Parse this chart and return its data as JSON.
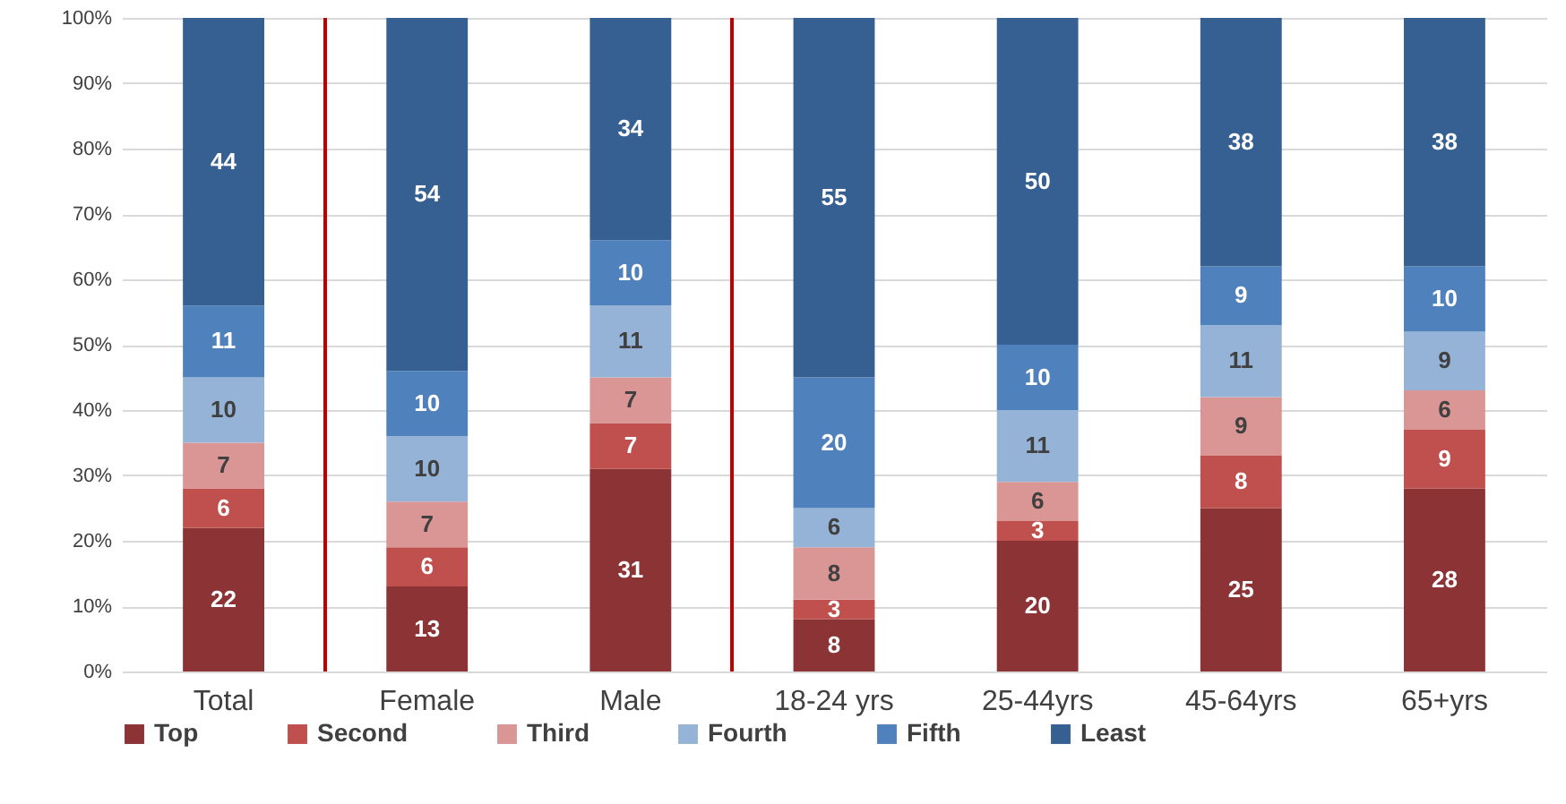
{
  "chart_data": {
    "type": "bar",
    "stacked": true,
    "data_labels": true,
    "grid": "y",
    "legend": "bottom",
    "categories": [
      "Total",
      "Female",
      "Male",
      "18-24 yrs",
      "25-44yrs",
      "45-64yrs",
      "65+yrs"
    ],
    "series": [
      {
        "name": "Top",
        "color": "#8c3336",
        "values": [
          22,
          13,
          31,
          8,
          20,
          25,
          28
        ]
      },
      {
        "name": "Second",
        "color": "#c0504d",
        "values": [
          6,
          6,
          7,
          3,
          3,
          8,
          9
        ]
      },
      {
        "name": "Third",
        "color": "#d99694",
        "values": [
          7,
          7,
          7,
          8,
          6,
          9,
          6
        ]
      },
      {
        "name": "Fourth",
        "color": "#95b3d7",
        "values": [
          10,
          10,
          11,
          6,
          11,
          11,
          9
        ]
      },
      {
        "name": "Fifth",
        "color": "#4f81bd",
        "values": [
          11,
          10,
          10,
          20,
          10,
          9,
          10
        ]
      },
      {
        "name": "Least",
        "color": "#376092",
        "values": [
          44,
          54,
          34,
          55,
          50,
          38,
          38
        ]
      }
    ],
    "ylim": [
      0,
      100
    ],
    "yticks": [
      {
        "value": 0,
        "label": "0%"
      },
      {
        "value": 10,
        "label": "10%"
      },
      {
        "value": 20,
        "label": "20%"
      },
      {
        "value": 30,
        "label": "30%"
      },
      {
        "value": 40,
        "label": "40%"
      },
      {
        "value": 50,
        "label": "50%"
      },
      {
        "value": 60,
        "label": "60%"
      },
      {
        "value": 70,
        "label": "70%"
      },
      {
        "value": 80,
        "label": "80%"
      },
      {
        "value": 90,
        "label": "90%"
      },
      {
        "value": 100,
        "label": "100%"
      }
    ]
  }
}
